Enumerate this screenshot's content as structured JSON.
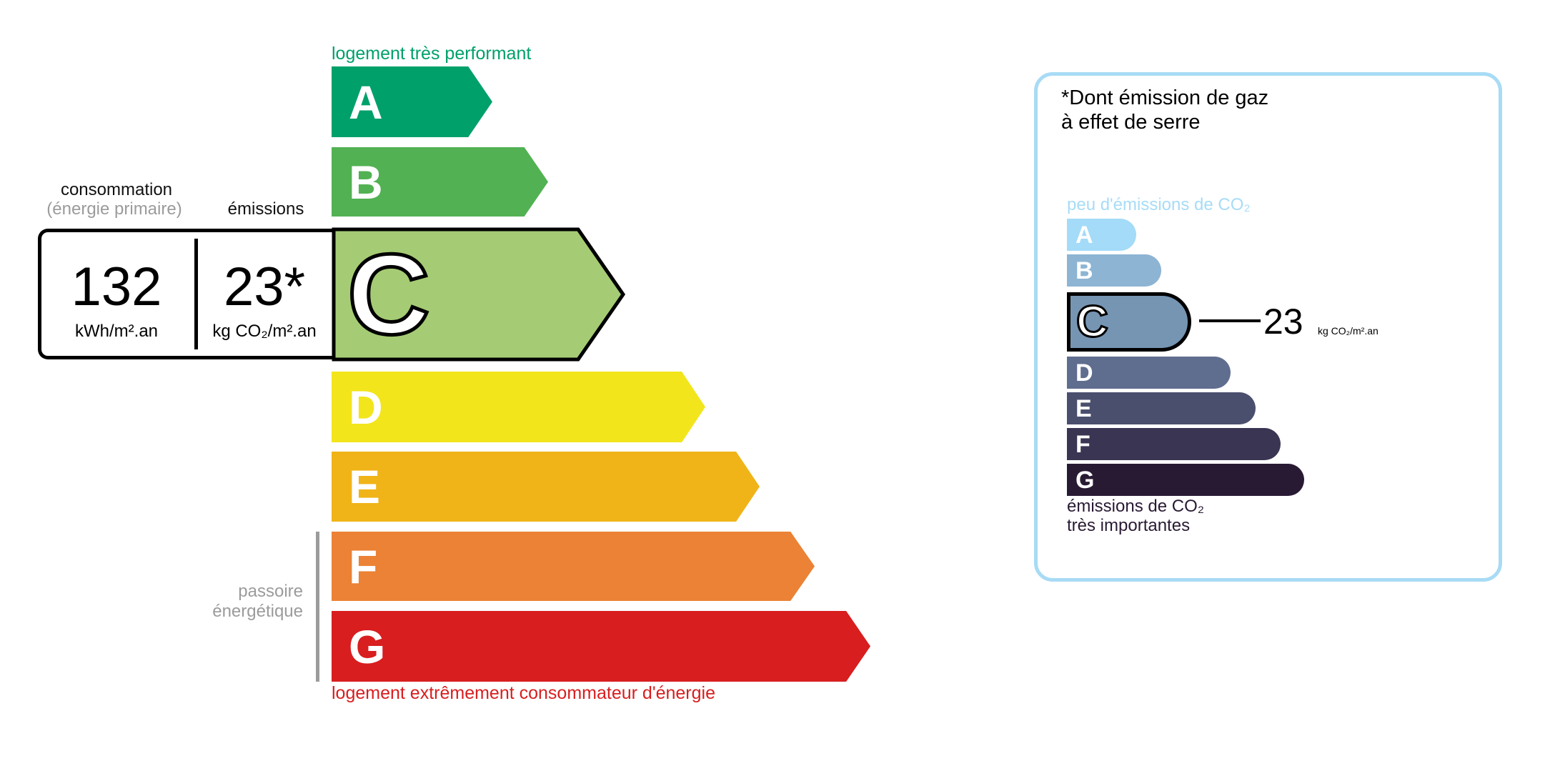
{
  "energy": {
    "top_label": "logement très performant",
    "bottom_label": "logement extrêmement consommateur d'énergie",
    "passoire_label": [
      "passoire",
      "énergétique"
    ],
    "classes": [
      {
        "letter": "A",
        "color": "#00a06b"
      },
      {
        "letter": "B",
        "color": "#52b153"
      },
      {
        "letter": "C",
        "color": "#a5cc74"
      },
      {
        "letter": "D",
        "color": "#f2e51c"
      },
      {
        "letter": "E",
        "color": "#f0b418"
      },
      {
        "letter": "F",
        "color": "#eb8235"
      },
      {
        "letter": "G",
        "color": "#d81e1f"
      }
    ],
    "current_class": "C",
    "consumption_header": "consommation",
    "consumption_subheader": "(énergie primaire)",
    "emissions_header": "émissions",
    "consumption_value": "132",
    "consumption_unit": "kWh/m².an",
    "emissions_value": "23*",
    "emissions_unit": "kg CO₂/m².an"
  },
  "ges": {
    "title_line1": "*Dont émission de gaz",
    "title_line2": "à effet de serre",
    "top_label": "peu d'émissions de CO₂",
    "bottom_label_line1": "émissions de CO₂",
    "bottom_label_line2": "très importantes",
    "classes": [
      {
        "letter": "A",
        "color": "#a3dbf8"
      },
      {
        "letter": "B",
        "color": "#8db4d3"
      },
      {
        "letter": "C",
        "color": "#7695b3"
      },
      {
        "letter": "D",
        "color": "#5f6d8e"
      },
      {
        "letter": "E",
        "color": "#4b4f6e"
      },
      {
        "letter": "F",
        "color": "#393553"
      },
      {
        "letter": "G",
        "color": "#291a34"
      }
    ],
    "current_class": "C",
    "value": "23",
    "unit": "kg CO₂/m².an",
    "border_color": "#a8dbf5"
  }
}
